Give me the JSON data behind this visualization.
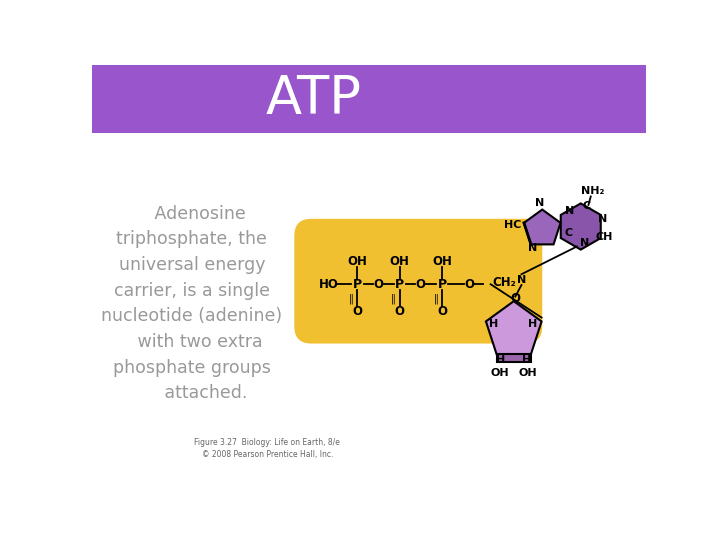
{
  "title": "ATP",
  "title_bg_color": "#9955cc",
  "title_text_color": "#ffffff",
  "bg_color": "#ffffff",
  "body_text": "   Adenosine\ntriphosphate, the\nuniversal energy\ncarrier, is a single\nnucleotide (adenine)\n   with two extra\nphosphate groups\n     attached.",
  "body_text_color": "#999999",
  "caption_text": "Figure 3.27  Biology: Life on Earth, 8/e\n© 2008 Pearson Prentice Hall, Inc.",
  "caption_color": "#666666",
  "yellow_bg": "#f0c030",
  "mol_color": "#000000",
  "purine_hex_color": "#8855aa",
  "purine_pent_color": "#9966bb",
  "sugar_color": "#cc99dd",
  "sugar_dark": "#9966aa"
}
